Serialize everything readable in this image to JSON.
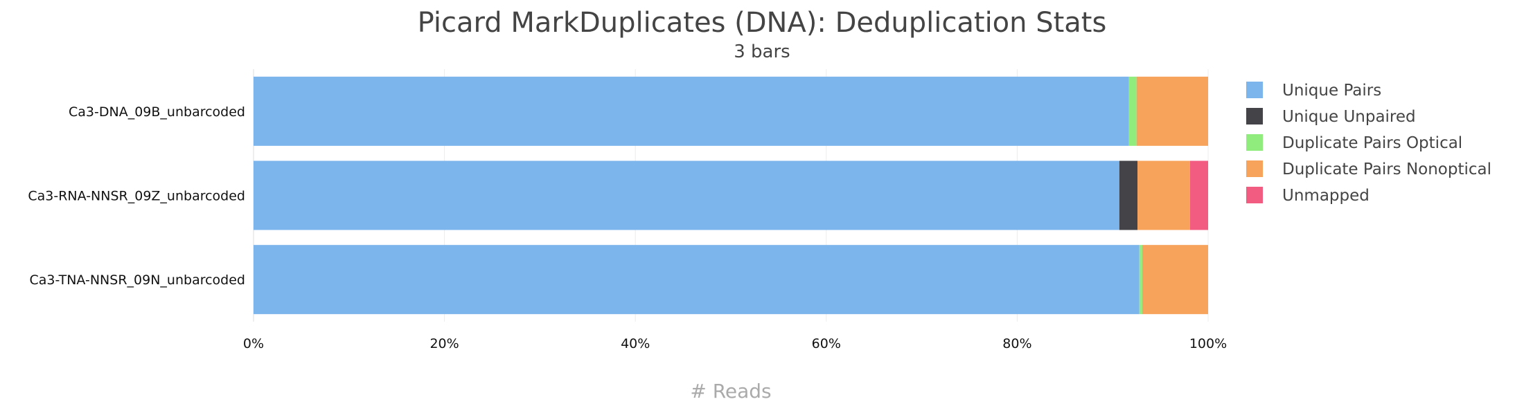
{
  "chart_data": {
    "type": "bar",
    "orientation": "horizontal",
    "stacked": true,
    "title": "Picard MarkDuplicates (DNA): Deduplication Stats",
    "subtitle": "3 bars",
    "xlabel": "# Reads",
    "ylabel": "",
    "xlim": [
      0,
      100
    ],
    "x_ticks": [
      "0%",
      "20%",
      "40%",
      "60%",
      "80%",
      "100%"
    ],
    "grid": true,
    "legend_position": "right",
    "categories": [
      "Ca3-DNA_09B_unbarcoded",
      "Ca3-RNA-NNSR_09Z_unbarcoded",
      "Ca3-TNA-NNSR_09N_unbarcoded"
    ],
    "series": [
      {
        "name": "Unique Pairs",
        "color": "#7cb5ec",
        "values": [
          91.7,
          90.7,
          92.8
        ]
      },
      {
        "name": "Unique Unpaired",
        "color": "#434348",
        "values": [
          0,
          1.9,
          0
        ]
      },
      {
        "name": "Duplicate Pairs Optical",
        "color": "#90ed7d",
        "values": [
          0.8,
          0,
          0.3
        ]
      },
      {
        "name": "Duplicate Pairs Nonoptical",
        "color": "#f7a35c",
        "values": [
          7.5,
          5.5,
          6.9
        ]
      },
      {
        "name": "Unmapped",
        "color": "#f15c80",
        "values": [
          0,
          1.9,
          0
        ]
      }
    ]
  }
}
